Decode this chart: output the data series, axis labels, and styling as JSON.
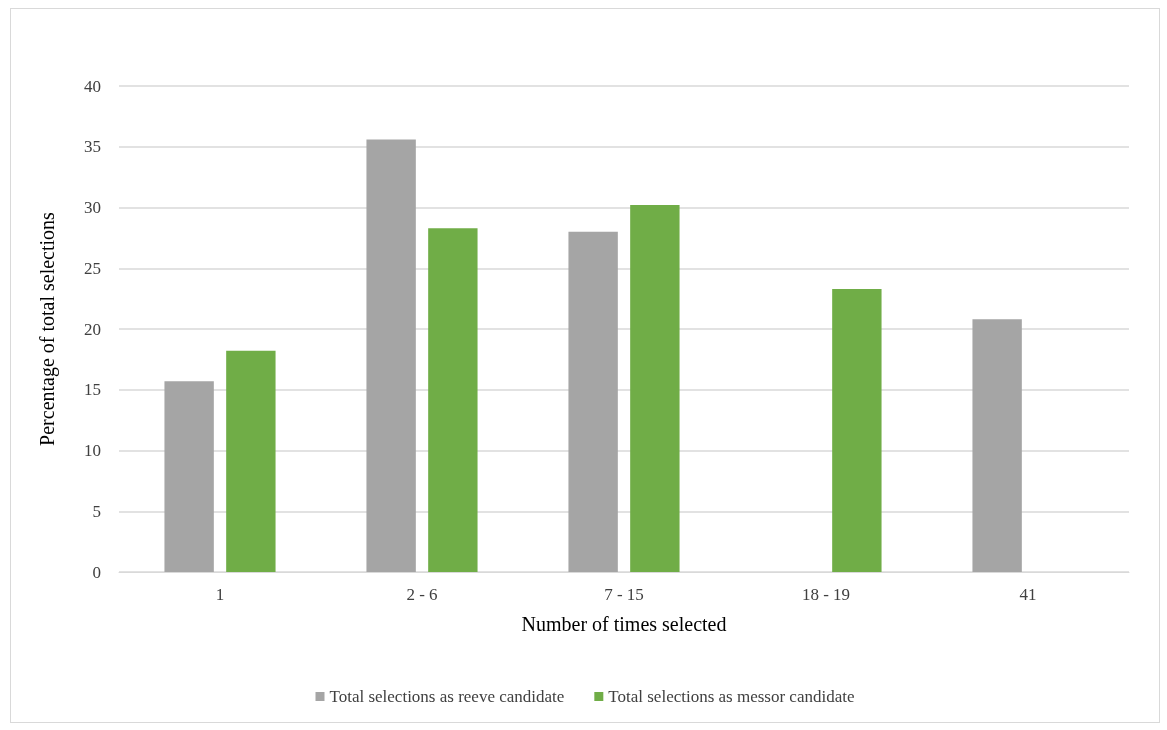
{
  "chart_data": {
    "type": "bar",
    "xlabel": "Number of times selected",
    "ylabel": "Percentage of total selections",
    "categories": [
      "1",
      "2 - 6",
      "7 - 15",
      "18 - 19",
      "41"
    ],
    "series": [
      {
        "name": "Total selections as reeve candidate",
        "color": "#a5a5a5",
        "values": [
          15.7,
          35.6,
          28.0,
          0,
          20.8
        ]
      },
      {
        "name": "Total selections as messor candidate",
        "color": "#70ad47",
        "values": [
          18.2,
          28.3,
          30.2,
          23.3,
          0
        ]
      }
    ],
    "ylim": [
      0,
      40
    ],
    "yticks": [
      0,
      5,
      10,
      15,
      20,
      25,
      30,
      35,
      40
    ],
    "grid": "y",
    "legend": "bottom"
  }
}
